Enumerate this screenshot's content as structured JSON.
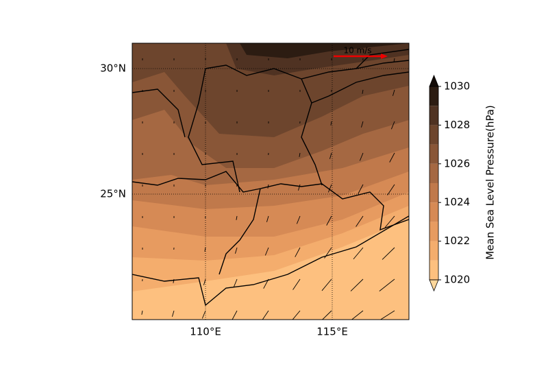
{
  "map": {
    "lat_labels": [
      "30°N",
      "25°N"
    ],
    "lon_labels": [
      "110°E",
      "115°E"
    ],
    "quiver_key_label": "10 m/s"
  },
  "colorbar": {
    "label": "Mean Sea Level Pressure(hPa)",
    "lim": [
      1020,
      1030
    ],
    "ticks": [
      1020,
      1022,
      1024,
      1026,
      1028,
      1030
    ],
    "colors": [
      "#fdc07f",
      "#f4ad6d",
      "#e79b60",
      "#d68a55",
      "#c0794b",
      "#a56842",
      "#895637",
      "#6d452d",
      "#4f3222",
      "#2c1c12"
    ]
  }
}
